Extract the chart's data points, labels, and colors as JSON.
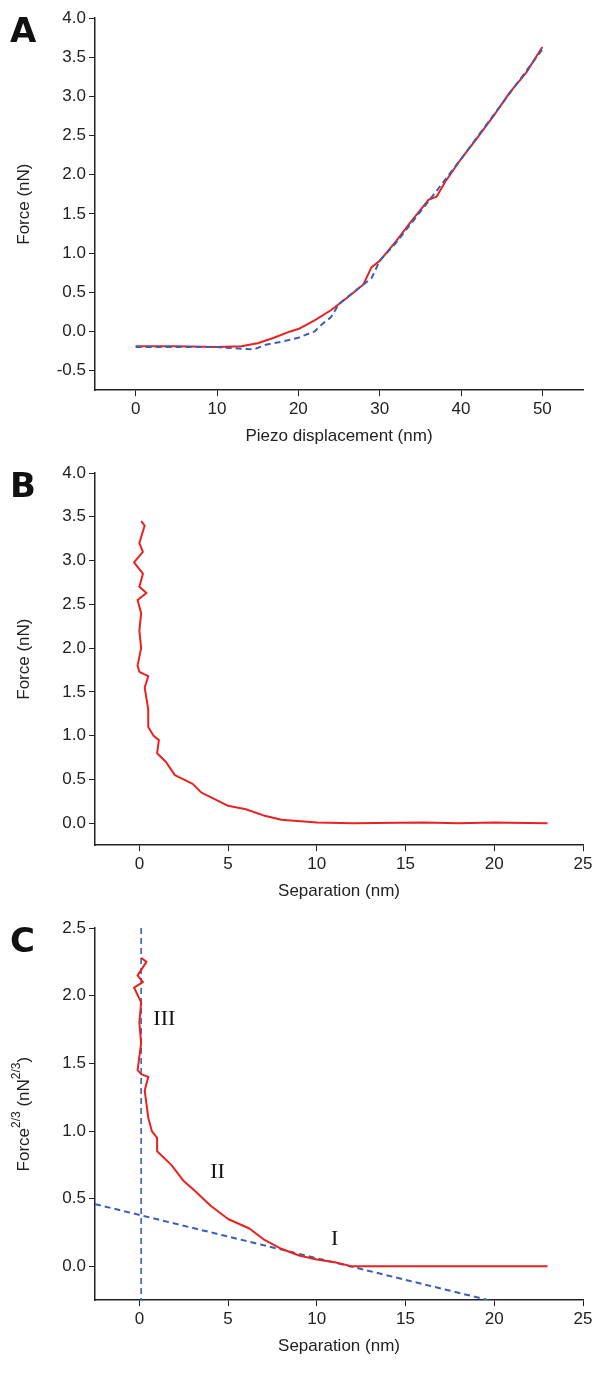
{
  "chart_data": [
    {
      "type": "line",
      "title": "A",
      "xlabel": "Piezo displacement (nm)",
      "ylabel": "Force (nN)",
      "xlim": [
        -5,
        55
      ],
      "xticks": [
        0,
        10,
        20,
        30,
        40,
        50
      ],
      "ylim": [
        -0.75,
        4.0
      ],
      "yticks": [
        {
          "value": -0.5,
          "label": "-0.5"
        },
        {
          "value": 0,
          "label": "0.0"
        },
        {
          "value": 0.5,
          "label": "0.5"
        },
        {
          "value": 1,
          "label": "1.0"
        },
        {
          "value": 1.5,
          "label": "1.5"
        },
        {
          "value": 2,
          "label": "2.0"
        },
        {
          "value": 2.5,
          "label": "2.5"
        },
        {
          "value": 3,
          "label": "3.0"
        },
        {
          "value": 3.5,
          "label": "3.5"
        },
        {
          "value": 4,
          "label": "4.0"
        }
      ],
      "grid": false,
      "legend": false,
      "marker": "none",
      "series": [
        {
          "color": "#3a5fb5",
          "line_style": "dashed",
          "x": [
            0,
            10,
            13,
            14.5,
            16,
            18,
            20,
            22,
            23,
            24,
            25,
            27,
            29,
            30,
            32,
            36,
            40,
            45,
            50
          ],
          "values": [
            -0.2,
            -0.2,
            -0.22,
            -0.23,
            -0.17,
            -0.13,
            -0.08,
            0.0,
            0.1,
            0.18,
            0.35,
            0.52,
            0.68,
            0.9,
            1.13,
            1.66,
            2.2,
            2.9,
            3.6
          ]
        },
        {
          "color": "#e8231f",
          "line_style": "solid",
          "x": [
            0,
            5,
            10,
            13,
            15,
            17,
            19,
            20,
            22,
            24,
            26,
            28,
            29,
            30,
            32,
            34,
            36,
            37,
            38,
            40,
            42,
            44,
            46,
            48,
            50
          ],
          "values": [
            -0.19,
            -0.19,
            -0.2,
            -0.19,
            -0.15,
            -0.08,
            0.0,
            0.03,
            0.14,
            0.27,
            0.43,
            0.6,
            0.82,
            0.9,
            1.15,
            1.42,
            1.68,
            1.72,
            1.9,
            2.2,
            2.47,
            2.75,
            3.05,
            3.3,
            3.63
          ]
        }
      ]
    },
    {
      "type": "line",
      "title": "B",
      "xlabel": "Separation (nm)",
      "ylabel": "Force (nN)",
      "xlim": [
        -2.5,
        25
      ],
      "xticks": [
        0,
        5,
        10,
        15,
        20,
        25
      ],
      "ylim": [
        -0.25,
        4.0
      ],
      "yticks": [
        {
          "value": 0,
          "label": "0.0"
        },
        {
          "value": 0.5,
          "label": "0.5"
        },
        {
          "value": 1,
          "label": "1.0"
        },
        {
          "value": 1.5,
          "label": "1.5"
        },
        {
          "value": 2,
          "label": "2.0"
        },
        {
          "value": 2.5,
          "label": "2.5"
        },
        {
          "value": 3,
          "label": "3.0"
        },
        {
          "value": 3.5,
          "label": "3.5"
        },
        {
          "value": 4,
          "label": "4.0"
        }
      ],
      "grid": false,
      "legend": false,
      "marker": "none",
      "series": [
        {
          "color": "#e8231f",
          "line_style": "solid",
          "x": [
            0.1,
            0.3,
            0,
            0.2,
            -0.3,
            0.2,
            0,
            0.4,
            -0.1,
            0.1,
            0,
            0.1,
            -0.1,
            0,
            0.5,
            0.3,
            0.5,
            0.5,
            0.8,
            1.1,
            1.0,
            1.5,
            2,
            3,
            3.5,
            4.5,
            5,
            6,
            7,
            8,
            10,
            12,
            16,
            18,
            20,
            23
          ],
          "values": [
            3.45,
            3.4,
            3.2,
            3.1,
            2.98,
            2.85,
            2.7,
            2.63,
            2.55,
            2.4,
            2.2,
            2.0,
            1.8,
            1.73,
            1.68,
            1.55,
            1.3,
            1.1,
            1.0,
            0.95,
            0.8,
            0.7,
            0.55,
            0.45,
            0.35,
            0.25,
            0.2,
            0.16,
            0.09,
            0.04,
            0.01,
            0.0,
            0.01,
            0.0,
            0.01,
            0.0
          ]
        }
      ]
    },
    {
      "type": "line",
      "title": "C",
      "xlabel": "Separation (nm)",
      "ylabel": "Force$^{2/3}$ (nN$^{2/3}$)",
      "xlim": [
        -2.5,
        25
      ],
      "xticks": [
        0,
        5,
        10,
        15,
        20,
        25
      ],
      "ylim": [
        -0.25,
        2.5
      ],
      "yticks": [
        {
          "value": 0,
          "label": "0.0"
        },
        {
          "value": 0.5,
          "label": "0.5"
        },
        {
          "value": 1,
          "label": "1.0"
        },
        {
          "value": 1.5,
          "label": "1.5"
        },
        {
          "value": 2,
          "label": "2.0"
        },
        {
          "value": 2.5,
          "label": "2.5"
        }
      ],
      "grid": false,
      "legend": false,
      "marker": "none",
      "series": [
        {
          "color": "#e8231f",
          "line_style": "solid",
          "x": [
            0.1,
            0.4,
            -0.1,
            0.2,
            -0.3,
            0.1,
            0,
            0.1,
            -0.1,
            0.1,
            0.5,
            0.3,
            0.5,
            0.7,
            1,
            1,
            1.8,
            2.5,
            3.2,
            4,
            5,
            6.2,
            7,
            8,
            9,
            10,
            11,
            12,
            23
          ],
          "values": [
            2.28,
            2.25,
            2.15,
            2.1,
            2.06,
            1.95,
            1.8,
            1.65,
            1.45,
            1.42,
            1.4,
            1.3,
            1.1,
            1.0,
            0.95,
            0.85,
            0.75,
            0.63,
            0.55,
            0.45,
            0.35,
            0.28,
            0.2,
            0.13,
            0.08,
            0.05,
            0.03,
            0.0,
            0.0
          ]
        },
        {
          "type": "line",
          "color": "#3a5fb5",
          "line_style": "dashed",
          "x": [
            -2.5,
            19.7
          ],
          "values": [
            0.46,
            -0.25
          ]
        }
      ],
      "ref_lines": [
        {
          "axis": "x",
          "value": 0.1,
          "color": "#3a5fb5",
          "line_style": "dashed"
        }
      ],
      "annotations": [
        "III",
        "II",
        "I"
      ]
    }
  ]
}
